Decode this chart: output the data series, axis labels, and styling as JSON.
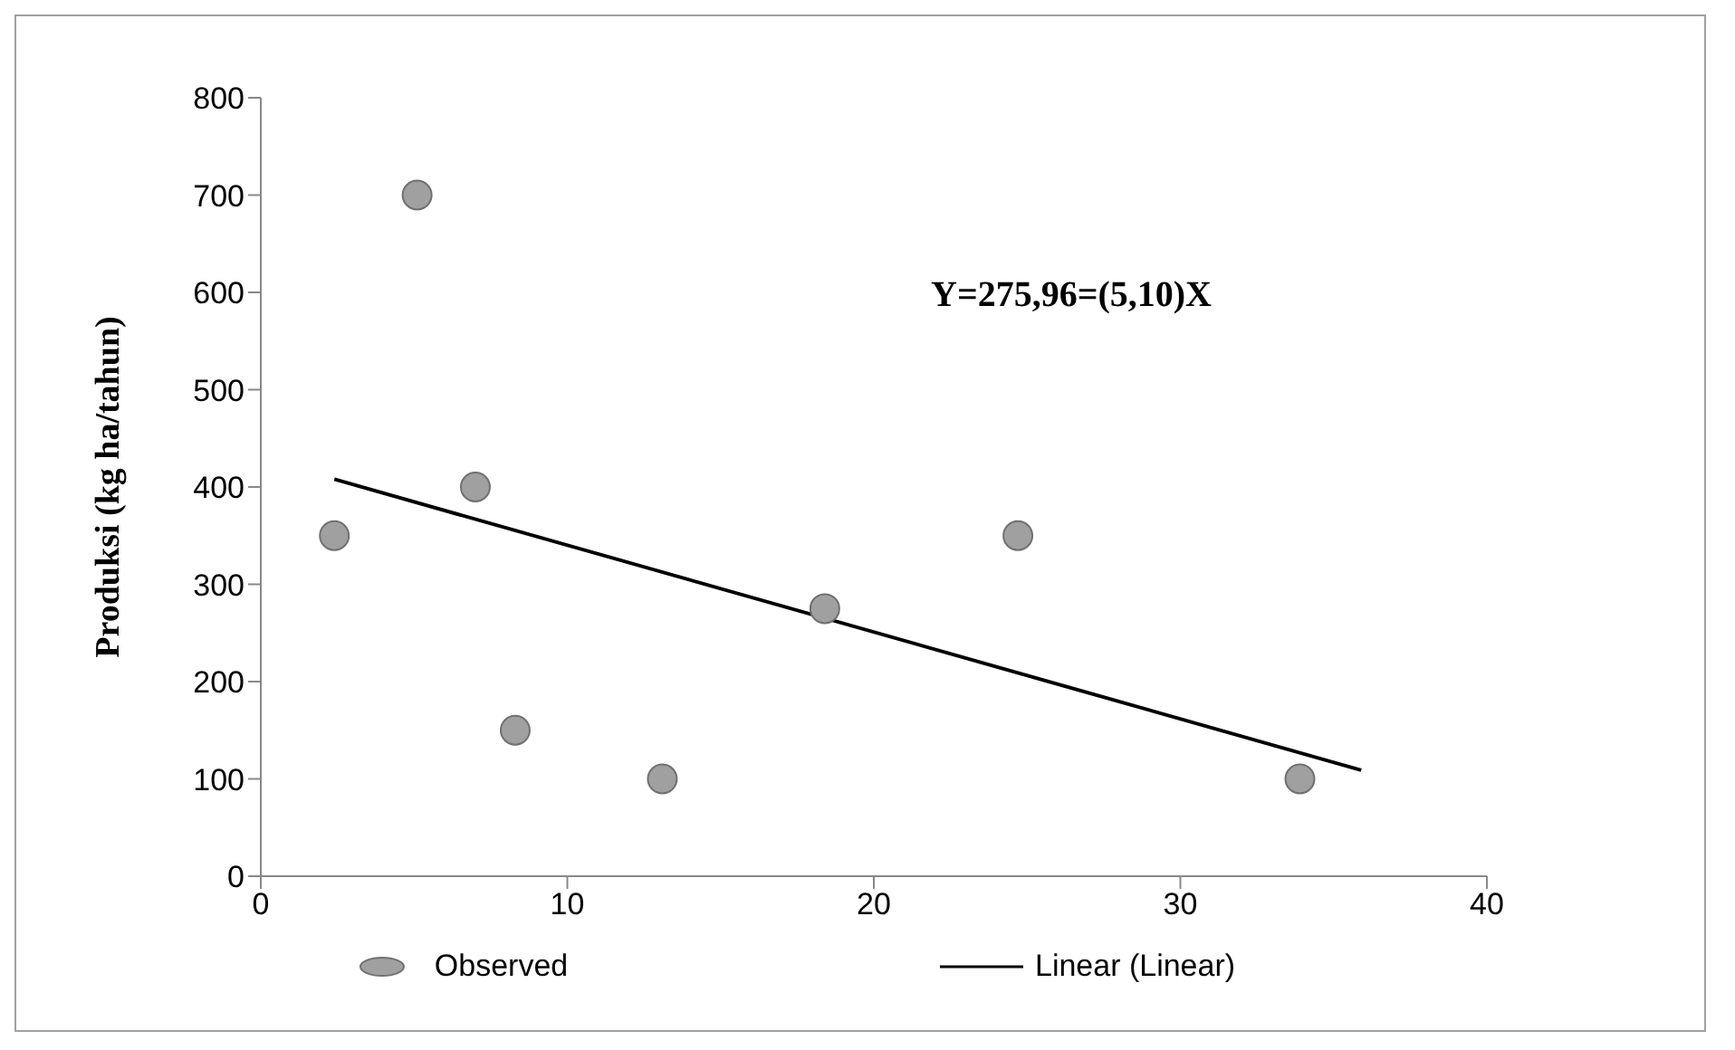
{
  "chart_data": {
    "type": "scatter",
    "ylabel": "Produksi (kg ha/tahun)",
    "annotations": [
      "Y=275,96=(5,10)X"
    ],
    "xlim": [
      0,
      40
    ],
    "xticks": [
      0,
      10,
      20,
      30,
      40
    ],
    "ylim": [
      0,
      800
    ],
    "yticks": [
      0,
      100,
      200,
      300,
      400,
      500,
      600,
      700,
      800
    ],
    "grid": false,
    "legend": "bottom",
    "series": [
      {
        "name": "Observed",
        "marker": "circle",
        "color": "#a0a0a0",
        "x": [
          2.4,
          5.1,
          7.0,
          8.3,
          13.1,
          18.4,
          24.7,
          33.9
        ],
        "values": [
          350,
          700,
          400,
          150,
          100,
          275,
          350,
          100
        ]
      },
      {
        "name": "Linear (Linear)",
        "type": "line",
        "color": "#000000",
        "line_style": "solid",
        "x": [
          2.4,
          35.9
        ],
        "values": [
          408,
          109
        ]
      }
    ]
  }
}
